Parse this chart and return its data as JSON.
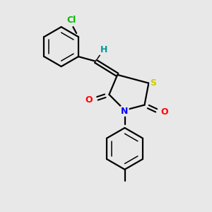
{
  "background_color": "#e8e8e8",
  "bond_color": "#000000",
  "atom_colors": {
    "Cl": "#00bb00",
    "H": "#009999",
    "S": "#cccc00",
    "N": "#0000ff",
    "O": "#ff0000",
    "C": "#000000"
  },
  "figsize": [
    3.0,
    3.0
  ],
  "dpi": 100
}
